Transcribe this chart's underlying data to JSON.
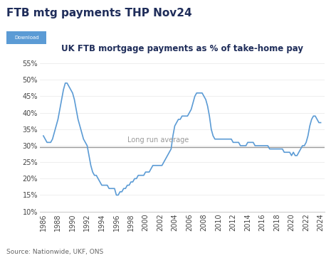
{
  "title": "UK FTB mortgage payments as % of take-home pay",
  "page_title": "FTB mtg payments THP Nov24",
  "source": "Source: Nationwide, UKF, ONS",
  "long_run_average": 29.5,
  "long_run_label": "Long run average",
  "background_color": "#ffffff",
  "line_color": "#5b9bd5",
  "avg_line_color": "#999999",
  "ylim": [
    10,
    57
  ],
  "yticks": [
    10,
    15,
    20,
    25,
    30,
    35,
    40,
    45,
    50,
    55
  ],
  "ytick_labels": [
    "10%",
    "15%",
    "20%",
    "25%",
    "30%",
    "35%",
    "40%",
    "45%",
    "50%",
    "55%"
  ],
  "xticks": [
    1986,
    1988,
    1990,
    1992,
    1994,
    1996,
    1998,
    2000,
    2002,
    2004,
    2006,
    2008,
    2010,
    2012,
    2014,
    2016,
    2018,
    2020,
    2022,
    2024
  ],
  "years": [
    1986.0,
    1986.25,
    1986.5,
    1986.75,
    1987.0,
    1987.25,
    1987.5,
    1987.75,
    1988.0,
    1988.25,
    1988.5,
    1988.75,
    1989.0,
    1989.25,
    1989.5,
    1989.75,
    1990.0,
    1990.25,
    1990.5,
    1990.75,
    1991.0,
    1991.25,
    1991.5,
    1991.75,
    1992.0,
    1992.25,
    1992.5,
    1992.75,
    1993.0,
    1993.25,
    1993.5,
    1993.75,
    1994.0,
    1994.25,
    1994.5,
    1994.75,
    1995.0,
    1995.25,
    1995.5,
    1995.75,
    1996.0,
    1996.25,
    1996.5,
    1996.75,
    1997.0,
    1997.25,
    1997.5,
    1997.75,
    1998.0,
    1998.25,
    1998.5,
    1998.75,
    1999.0,
    1999.25,
    1999.5,
    1999.75,
    2000.0,
    2000.25,
    2000.5,
    2000.75,
    2001.0,
    2001.25,
    2001.5,
    2001.75,
    2002.0,
    2002.25,
    2002.5,
    2002.75,
    2003.0,
    2003.25,
    2003.5,
    2003.75,
    2004.0,
    2004.25,
    2004.5,
    2004.75,
    2005.0,
    2005.25,
    2005.5,
    2005.75,
    2006.0,
    2006.25,
    2006.5,
    2006.75,
    2007.0,
    2007.25,
    2007.5,
    2007.75,
    2008.0,
    2008.25,
    2008.5,
    2008.75,
    2009.0,
    2009.25,
    2009.5,
    2009.75,
    2010.0,
    2010.25,
    2010.5,
    2010.75,
    2011.0,
    2011.25,
    2011.5,
    2011.75,
    2012.0,
    2012.25,
    2012.5,
    2012.75,
    2013.0,
    2013.25,
    2013.5,
    2013.75,
    2014.0,
    2014.25,
    2014.5,
    2014.75,
    2015.0,
    2015.25,
    2015.5,
    2015.75,
    2016.0,
    2016.25,
    2016.5,
    2016.75,
    2017.0,
    2017.25,
    2017.5,
    2017.75,
    2018.0,
    2018.25,
    2018.5,
    2018.75,
    2019.0,
    2019.25,
    2019.5,
    2019.75,
    2020.0,
    2020.25,
    2020.5,
    2020.75,
    2021.0,
    2021.25,
    2021.5,
    2021.75,
    2022.0,
    2022.25,
    2022.5,
    2022.75,
    2023.0,
    2023.25,
    2023.5,
    2023.75,
    2024.0
  ],
  "values": [
    33,
    32,
    31,
    31,
    31,
    32,
    34,
    36,
    38,
    41,
    44,
    47,
    49,
    49,
    48,
    47,
    46,
    44,
    41,
    38,
    36,
    34,
    32,
    31,
    30,
    27,
    24,
    22,
    21,
    21,
    20,
    19,
    18,
    18,
    18,
    18,
    17,
    17,
    17,
    17,
    15,
    15,
    16,
    16,
    17,
    17,
    18,
    18,
    19,
    19,
    20,
    20,
    21,
    21,
    21,
    21,
    22,
    22,
    22,
    23,
    24,
    24,
    24,
    24,
    24,
    24,
    25,
    26,
    27,
    28,
    29,
    33,
    36,
    37,
    38,
    38,
    39,
    39,
    39,
    39,
    40,
    41,
    43,
    45,
    46,
    46,
    46,
    46,
    45,
    44,
    42,
    39,
    35,
    33,
    32,
    32,
    32,
    32,
    32,
    32,
    32,
    32,
    32,
    32,
    31,
    31,
    31,
    31,
    30,
    30,
    30,
    30,
    31,
    31,
    31,
    31,
    30,
    30,
    30,
    30,
    30,
    30,
    30,
    30,
    29,
    29,
    29,
    29,
    29,
    29,
    29,
    29,
    28,
    28,
    28,
    28,
    27,
    28,
    27,
    27,
    28,
    29,
    30,
    30,
    31,
    33,
    36,
    38,
    39,
    39,
    38,
    37,
    37
  ]
}
